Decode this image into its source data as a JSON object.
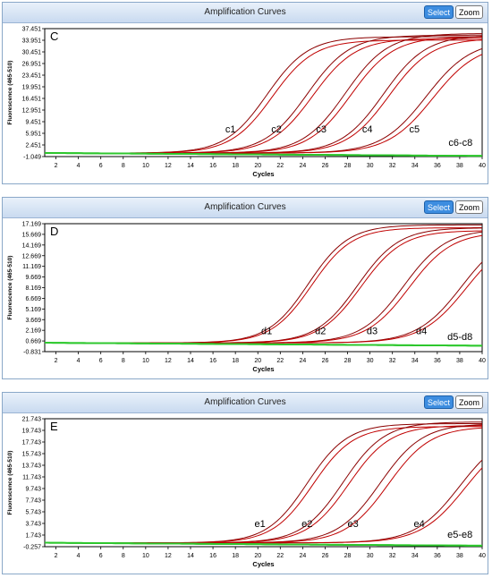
{
  "charts": [
    {
      "window_title": "Amplification Curves",
      "select_label": "Select",
      "zoom_label": "Zoom",
      "chart_data": {
        "type": "line",
        "panel_letter": "C",
        "xlabel": "Cycles",
        "ylabel": "Fluorescence (465-510)",
        "xlim": [
          1,
          40
        ],
        "ylim": [
          -1.049,
          37.451
        ],
        "x_ticks": [
          2,
          4,
          6,
          8,
          10,
          12,
          14,
          16,
          18,
          20,
          22,
          24,
          26,
          28,
          30,
          32,
          34,
          36,
          38,
          40
        ],
        "y_ticks": [
          "-1.049",
          "2.451",
          "5.951",
          "9.451",
          "12.951",
          "16.451",
          "19.951",
          "23.451",
          "26.951",
          "30.451",
          "33.951",
          "37.451"
        ],
        "baseline": 0.0,
        "curve_labels": [
          {
            "text": "c1",
            "x": 17.1,
            "y": 6.2
          },
          {
            "text": "c2",
            "x": 21.2,
            "y": 6.2
          },
          {
            "text": "c3",
            "x": 25.2,
            "y": 6.2
          },
          {
            "text": "c4",
            "x": 29.3,
            "y": 6.2
          },
          {
            "text": "c5",
            "x": 33.5,
            "y": 6.2
          },
          {
            "text": "c6-c8",
            "x": 37.0,
            "y": 2.2
          }
        ],
        "series": [
          {
            "color": "#8b0000",
            "midpoint": 20.8,
            "slope": 1.85,
            "plateau": 35.0
          },
          {
            "color": "#c00000",
            "midpoint": 21.3,
            "slope": 1.85,
            "plateau": 34.0
          },
          {
            "color": "#8b0000",
            "midpoint": 24.4,
            "slope": 1.9,
            "plateau": 35.5
          },
          {
            "color": "#c00000",
            "midpoint": 24.9,
            "slope": 1.9,
            "plateau": 34.5
          },
          {
            "color": "#8b0000",
            "midpoint": 27.8,
            "slope": 1.9,
            "plateau": 36.0
          },
          {
            "color": "#c00000",
            "midpoint": 28.3,
            "slope": 1.9,
            "plateau": 35.0
          },
          {
            "color": "#8b0000",
            "midpoint": 31.2,
            "slope": 1.9,
            "plateau": 35.5
          },
          {
            "color": "#c00000",
            "midpoint": 31.7,
            "slope": 1.9,
            "plateau": 34.5
          },
          {
            "color": "#8b0000",
            "midpoint": 35.0,
            "slope": 2.0,
            "plateau": 34.0
          },
          {
            "color": "#c00000",
            "midpoint": 35.6,
            "slope": 2.0,
            "plateau": 33.0
          },
          {
            "color": "#1fc21f",
            "midpoint": 60.0,
            "slope": 3.0,
            "plateau": 20.0
          },
          {
            "color": "#33d433",
            "midpoint": 60.0,
            "slope": 3.0,
            "plateau": 20.0
          },
          {
            "color": "#19a819",
            "midpoint": 60.0,
            "slope": 3.0,
            "plateau": 20.0
          },
          {
            "color": "#44dd44",
            "midpoint": 60.0,
            "slope": 3.0,
            "plateau": 20.0
          },
          {
            "color": "#22bb22",
            "midpoint": 60.0,
            "slope": 3.0,
            "plateau": 20.0
          },
          {
            "color": "#2ec82e",
            "midpoint": 60.0,
            "slope": 3.0,
            "plateau": 20.0
          }
        ]
      }
    },
    {
      "window_title": "Amplification Curves",
      "select_label": "Select",
      "zoom_label": "Zoom",
      "chart_data": {
        "type": "line",
        "panel_letter": "D",
        "xlabel": "Cycles",
        "ylabel": "Fluorescence (465-510)",
        "xlim": [
          1,
          40
        ],
        "ylim": [
          -0.831,
          17.169
        ],
        "x_ticks": [
          2,
          4,
          6,
          8,
          10,
          12,
          14,
          16,
          18,
          20,
          22,
          24,
          26,
          28,
          30,
          32,
          34,
          36,
          38,
          40
        ],
        "y_ticks": [
          "-0.831",
          "0.669",
          "2.169",
          "3.669",
          "5.169",
          "6.669",
          "8.169",
          "9.669",
          "11.169",
          "12.669",
          "14.169",
          "15.669",
          "17.169"
        ],
        "baseline": 0.4,
        "curve_labels": [
          {
            "text": "d1",
            "x": 20.3,
            "y": 1.6
          },
          {
            "text": "d2",
            "x": 25.1,
            "y": 1.6
          },
          {
            "text": "d3",
            "x": 29.7,
            "y": 1.6
          },
          {
            "text": "d4",
            "x": 34.1,
            "y": 1.6
          },
          {
            "text": "d5-d8",
            "x": 36.9,
            "y": 0.8
          }
        ],
        "series": [
          {
            "color": "#8b0000",
            "midpoint": 24.5,
            "slope": 1.8,
            "plateau": 16.6
          },
          {
            "color": "#c00000",
            "midpoint": 24.8,
            "slope": 1.8,
            "plateau": 16.2
          },
          {
            "color": "#8b0000",
            "midpoint": 28.9,
            "slope": 1.85,
            "plateau": 16.2
          },
          {
            "color": "#c00000",
            "midpoint": 29.2,
            "slope": 1.85,
            "plateau": 15.8
          },
          {
            "color": "#8b0000",
            "midpoint": 33.0,
            "slope": 1.9,
            "plateau": 16.0
          },
          {
            "color": "#c00000",
            "midpoint": 33.5,
            "slope": 1.9,
            "plateau": 15.6
          },
          {
            "color": "#8b0000",
            "midpoint": 38.2,
            "slope": 2.0,
            "plateau": 16.0
          },
          {
            "color": "#c00000",
            "midpoint": 38.6,
            "slope": 2.0,
            "plateau": 15.5
          },
          {
            "color": "#1fc21f",
            "midpoint": 60.0,
            "slope": 3.0,
            "plateau": 10.0
          },
          {
            "color": "#33d433",
            "midpoint": 60.0,
            "slope": 3.0,
            "plateau": 10.0
          },
          {
            "color": "#19a819",
            "midpoint": 60.0,
            "slope": 3.0,
            "plateau": 10.0
          },
          {
            "color": "#44dd44",
            "midpoint": 60.0,
            "slope": 3.0,
            "plateau": 10.0
          },
          {
            "color": "#22bb22",
            "midpoint": 60.0,
            "slope": 3.0,
            "plateau": 10.0
          },
          {
            "color": "#2ec82e",
            "midpoint": 60.0,
            "slope": 3.0,
            "plateau": 10.0
          }
        ]
      }
    },
    {
      "window_title": "Amplification Curves",
      "select_label": "Select",
      "zoom_label": "Zoom",
      "chart_data": {
        "type": "line",
        "panel_letter": "E",
        "xlabel": "Cycles",
        "ylabel": "Fluorescence (465-510)",
        "xlim": [
          1,
          40
        ],
        "ylim": [
          -0.257,
          21.743
        ],
        "x_ticks": [
          2,
          4,
          6,
          8,
          10,
          12,
          14,
          16,
          18,
          20,
          22,
          24,
          26,
          28,
          30,
          32,
          34,
          36,
          38,
          40
        ],
        "y_ticks": [
          "-0.257",
          "1.743",
          "3.743",
          "5.743",
          "7.743",
          "9.743",
          "11.743",
          "13.743",
          "15.743",
          "17.743",
          "19.743",
          "21.743"
        ],
        "baseline": 0.4,
        "curve_labels": [
          {
            "text": "e1",
            "x": 19.7,
            "y": 3.1
          },
          {
            "text": "e2",
            "x": 23.9,
            "y": 3.1
          },
          {
            "text": "e3",
            "x": 28.0,
            "y": 3.1
          },
          {
            "text": "e4",
            "x": 33.9,
            "y": 3.1
          },
          {
            "text": "e5-e8",
            "x": 36.9,
            "y": 1.3
          }
        ],
        "series": [
          {
            "color": "#8b0000",
            "midpoint": 24.4,
            "slope": 1.8,
            "plateau": 20.5
          },
          {
            "color": "#c00000",
            "midpoint": 24.9,
            "slope": 1.8,
            "plateau": 20.0
          },
          {
            "color": "#8b0000",
            "midpoint": 27.6,
            "slope": 1.85,
            "plateau": 20.8
          },
          {
            "color": "#c00000",
            "midpoint": 28.1,
            "slope": 1.85,
            "plateau": 20.2
          },
          {
            "color": "#8b0000",
            "midpoint": 30.9,
            "slope": 1.9,
            "plateau": 20.5
          },
          {
            "color": "#c00000",
            "midpoint": 31.6,
            "slope": 1.9,
            "plateau": 20.0
          },
          {
            "color": "#8b0000",
            "midpoint": 38.0,
            "slope": 2.0,
            "plateau": 19.5
          },
          {
            "color": "#c00000",
            "midpoint": 38.5,
            "slope": 2.0,
            "plateau": 19.0
          },
          {
            "color": "#1fc21f",
            "midpoint": 60.0,
            "slope": 3.0,
            "plateau": 10.0
          },
          {
            "color": "#33d433",
            "midpoint": 60.0,
            "slope": 3.0,
            "plateau": 10.0
          },
          {
            "color": "#19a819",
            "midpoint": 60.0,
            "slope": 3.0,
            "plateau": 10.0
          },
          {
            "color": "#44dd44",
            "midpoint": 60.0,
            "slope": 3.0,
            "plateau": 10.0
          },
          {
            "color": "#22bb22",
            "midpoint": 60.0,
            "slope": 3.0,
            "plateau": 10.0
          },
          {
            "color": "#2ec82e",
            "midpoint": 60.0,
            "slope": 3.0,
            "plateau": 10.0
          }
        ]
      }
    }
  ]
}
